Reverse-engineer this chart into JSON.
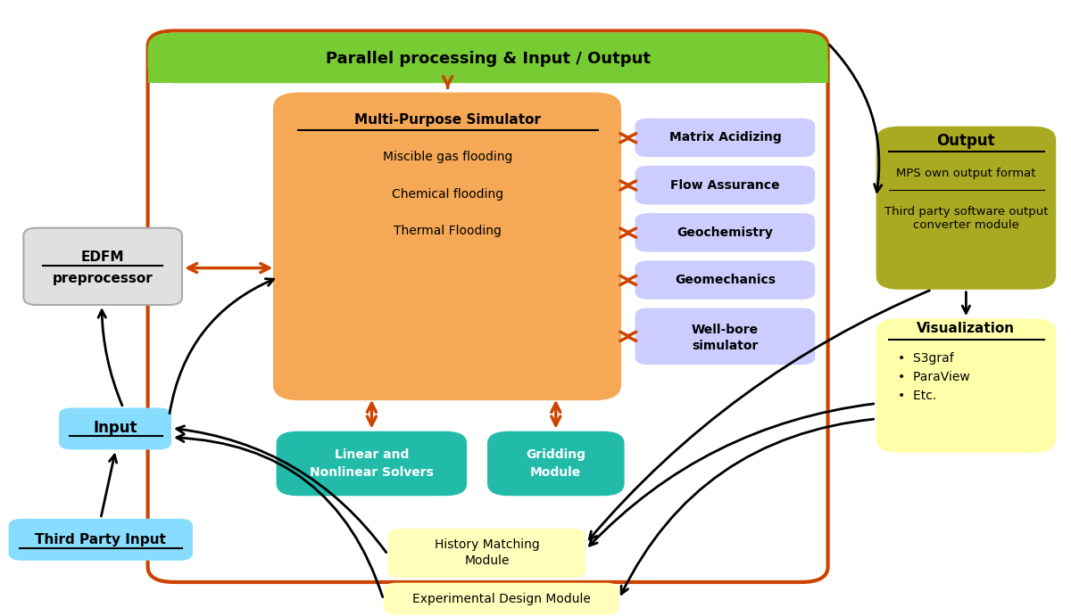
{
  "fig_width": 12.0,
  "fig_height": 6.91,
  "bg_color": "#ffffff",
  "orange_arrow": "#cc4400",
  "green_header_color": "#77cc33",
  "sim_color": "#f5a855",
  "purple_color": "#ccccff",
  "teal_color": "#22bbaa",
  "olive_color": "#aaaa22",
  "yellow_light": "#ffffaa",
  "yellow_pale": "#ffffbb",
  "blue_input": "#88ddff",
  "edfm_color": "#e0e0e0",
  "edfm_edge": "#aaaaaa",
  "header_text": "Parallel processing & Input / Output",
  "sim_title": "Multi-Purpose Simulator",
  "sim_items": [
    "Miscible gas flooding",
    "Chemical flooding",
    "Thermal Flooding"
  ],
  "purple_labels": [
    "Matrix Acidizing",
    "Flow Assurance",
    "Geochemistry",
    "Geomechanics"
  ],
  "wellbore_lines": [
    "Well-bore",
    "simulator"
  ],
  "linear_lines": [
    "Linear and",
    "Nonlinear Solvers"
  ],
  "gridding_lines": [
    "Gridding",
    "Module"
  ],
  "output_title": "Output",
  "output_line1": "MPS own output format",
  "output_line2": "Third party software output\nconverter module",
  "vis_title": "Visualization",
  "vis_items": [
    "•  S3graf",
    "•  ParaView",
    "•  Etc."
  ],
  "input_label": "Input",
  "third_party_label": "Third Party Input",
  "history_lines": [
    "History Matching",
    "Module"
  ],
  "exp_design_label": "Experimental Design Module",
  "edfm_lines": [
    "EDFM",
    "preprocessor"
  ]
}
